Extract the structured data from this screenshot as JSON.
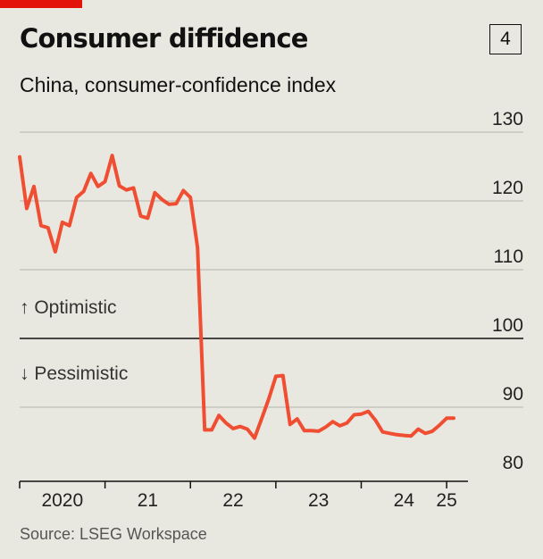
{
  "header": {
    "title": "Consumer diffidence",
    "subtitle": "China, consumer-confidence index",
    "chart_number": "4"
  },
  "source": "Source: LSEG Workspace",
  "colors": {
    "accent": "#e3120b",
    "line": "#f04e33",
    "background": "#e9e8e0",
    "grid": "#b4b4ac"
  },
  "chart_data": {
    "type": "line",
    "title": "Consumer diffidence",
    "subtitle": "China, consumer-confidence index",
    "y_ticks": [
      "130",
      "120",
      "110",
      "100",
      "90",
      "80"
    ],
    "ylim": [
      80,
      130
    ],
    "y_axis_side": "right",
    "x_ticks": [
      {
        "label": "2020",
        "x": 2020.5
      },
      {
        "label": "21",
        "x": 2021.5
      },
      {
        "label": "22",
        "x": 2022.5
      },
      {
        "label": "23",
        "x": 2023.5
      },
      {
        "label": "24",
        "x": 2024.5
      },
      {
        "label": "25",
        "x": 2025.0
      }
    ],
    "xlim": [
      2020.0,
      2025.25
    ],
    "reference_line": 100,
    "annotations": [
      "↑ Optimistic",
      "↓ Pessimistic"
    ],
    "grid": true,
    "series": [
      {
        "x": [
          2020.0,
          2020.083,
          2020.167,
          2020.25,
          2020.333,
          2020.417,
          2020.5,
          2020.583,
          2020.667,
          2020.75,
          2020.833,
          2020.917,
          2021.0,
          2021.083,
          2021.167,
          2021.25,
          2021.333,
          2021.417,
          2021.5,
          2021.583,
          2021.667,
          2021.75,
          2021.833,
          2021.917,
          2022.0,
          2022.083,
          2022.167,
          2022.25,
          2022.333,
          2022.417,
          2022.5,
          2022.583,
          2022.667,
          2022.75,
          2022.833,
          2022.917,
          2023.0,
          2023.083,
          2023.167,
          2023.25,
          2023.333,
          2023.417,
          2023.5,
          2023.583,
          2023.667,
          2023.75,
          2023.833,
          2023.917,
          2024.0,
          2024.083,
          2024.167,
          2024.25,
          2024.333,
          2024.417,
          2024.5,
          2024.583,
          2024.667,
          2024.75,
          2024.833,
          2024.917,
          2025.0,
          2025.083
        ],
        "values": [
          126.4,
          118.9,
          122.1,
          116.4,
          116.1,
          112.6,
          116.9,
          116.4,
          120.5,
          121.4,
          124.0,
          122.1,
          122.8,
          126.6,
          122.2,
          121.6,
          121.9,
          117.8,
          117.5,
          121.2,
          120.2,
          119.5,
          119.6,
          121.5,
          120.5,
          113.2,
          86.7,
          86.7,
          88.8,
          87.7,
          86.9,
          87.2,
          86.8,
          85.5,
          88.3,
          91.2,
          94.5,
          94.6,
          87.5,
          88.3,
          86.6,
          86.6,
          86.5,
          87.1,
          87.9,
          87.3,
          87.7,
          88.9,
          89.0,
          89.4,
          88.1,
          86.4,
          86.2,
          86.0,
          85.9,
          85.8,
          86.8,
          86.2,
          86.5,
          87.4,
          88.4,
          88.4
        ]
      }
    ]
  }
}
